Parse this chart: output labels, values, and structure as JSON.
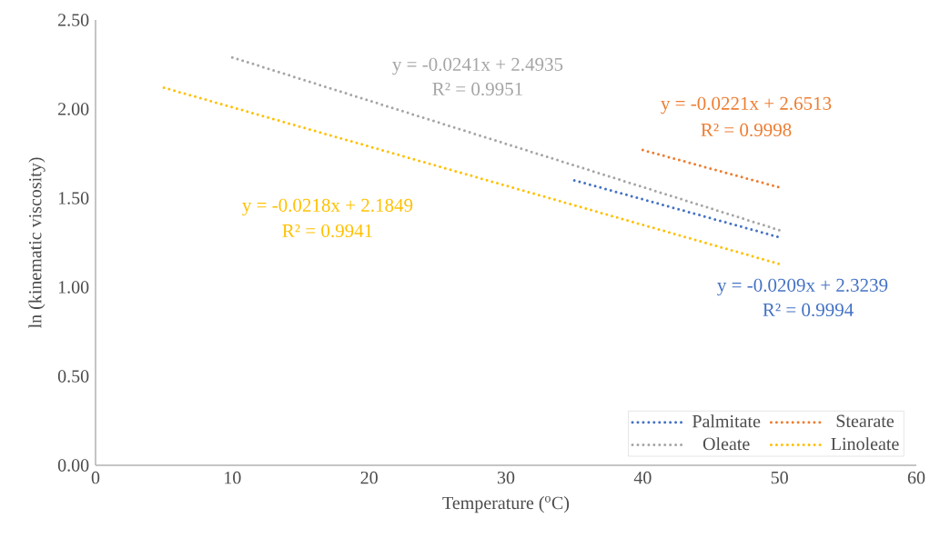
{
  "chart_data": {
    "type": "line",
    "xlabel": "Temperature ($^{o}$C)",
    "ylabel": "ln (kinematic viscosity)",
    "xlim": [
      0,
      60
    ],
    "xticks": [
      0,
      10,
      20,
      30,
      40,
      50,
      60
    ],
    "ylim": [
      0,
      2.5
    ],
    "yticks": [
      {
        "value": 0,
        "label": "0.00"
      },
      {
        "value": 0.5,
        "label": "0.50"
      },
      {
        "value": 1,
        "label": "1.00"
      },
      {
        "value": 1.5,
        "label": "1.50"
      },
      {
        "value": 2,
        "label": "2.00"
      },
      {
        "value": 2.5,
        "label": "2.50"
      }
    ],
    "series": [
      {
        "name": "Palmitate",
        "color": "#4472c4",
        "x": [
          35,
          50
        ],
        "values": [
          1.6,
          1.28
        ]
      },
      {
        "name": "Stearate",
        "color": "#ed7d31",
        "x": [
          40,
          50
        ],
        "values": [
          1.77,
          1.56
        ]
      },
      {
        "name": "Oleate",
        "color": "#a5a5a5",
        "x": [
          10,
          50
        ],
        "values": [
          2.29,
          1.32
        ]
      },
      {
        "name": "Linoleate",
        "color": "#ffc000",
        "x": [
          5,
          50
        ],
        "values": [
          2.12,
          1.13
        ]
      }
    ],
    "annotations": [
      "y = -0.0209x + 2.3239",
      "R² = 0.9994",
      "y = -0.0221x + 2.6513",
      "R² = 0.9998",
      "y = -0.0241x + 2.4935",
      "R² = 0.9951",
      "y = -0.0218x + 2.1849",
      "R² = 0.9941"
    ],
    "line_style": "dotted",
    "marker": "none",
    "grid": false,
    "legend": "bottom right"
  }
}
